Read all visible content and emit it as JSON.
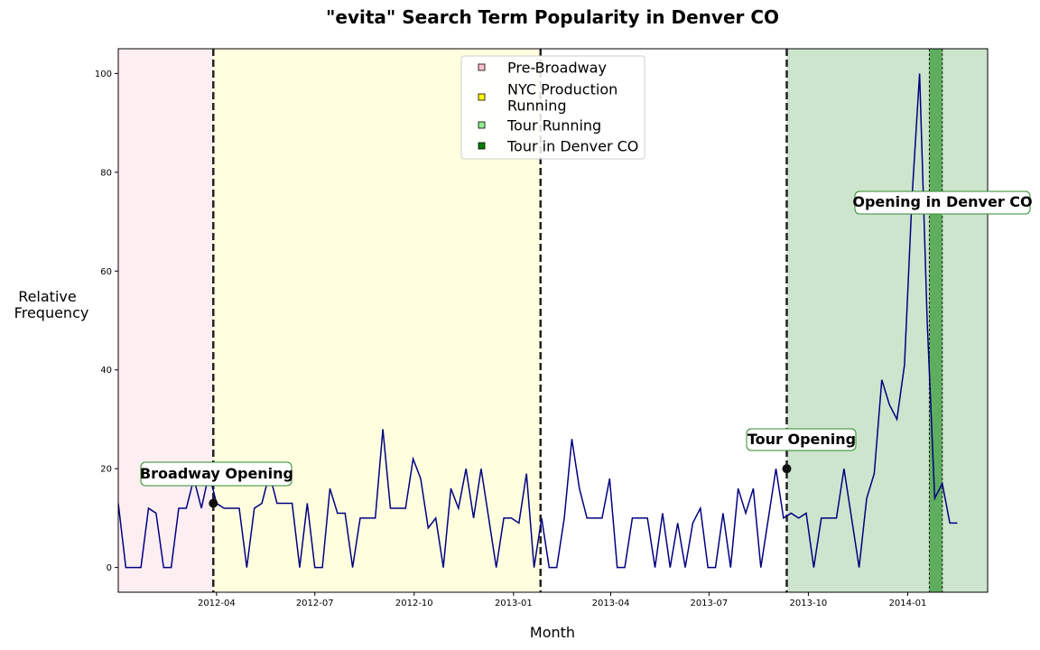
{
  "chart_data": {
    "type": "line",
    "title": "\"evita\" Search Term Popularity in Denver CO",
    "xlabel": "Month",
    "ylabel_line1": "Relative",
    "ylabel_line2": "Frequency",
    "xlim": [
      "2012-01-01",
      "2014-03-16"
    ],
    "ylim": [
      -5,
      105
    ],
    "x_ticks": [
      "2012-04-01",
      "2012-07-01",
      "2012-10-01",
      "2013-01-01",
      "2013-04-01",
      "2013-07-01",
      "2013-10-01",
      "2014-01-01"
    ],
    "x_tick_labels": [
      "2012-04",
      "2012-07",
      "2012-10",
      "2013-01",
      "2013-04",
      "2013-07",
      "2013-10",
      "2014-01"
    ],
    "y_ticks": [
      0,
      20,
      40,
      60,
      80,
      100
    ],
    "y_tick_labels": [
      "0",
      "20",
      "40",
      "60",
      "80",
      "100"
    ],
    "grid": false,
    "legend_placement": "top-center",
    "start_date": "2012-01-01",
    "interval_days": 7,
    "series": [
      {
        "color": "#000080",
        "values": [
          13,
          0,
          0,
          0,
          12,
          11,
          0,
          0,
          12,
          12,
          18,
          12,
          19,
          13,
          12,
          12,
          12,
          0,
          12,
          13,
          19,
          13,
          13,
          13,
          0,
          13,
          0,
          0,
          16,
          11,
          11,
          0,
          10,
          10,
          10,
          28,
          12,
          12,
          12,
          22,
          18,
          8,
          10,
          0,
          16,
          12,
          20,
          10,
          20,
          10,
          0,
          10,
          10,
          9,
          19,
          0,
          10,
          0,
          0,
          10,
          26,
          16,
          10,
          10,
          10,
          18,
          0,
          0,
          10,
          10,
          10,
          0,
          11,
          0,
          9,
          0,
          9,
          12,
          0,
          0,
          11,
          0,
          16,
          11,
          16,
          0,
          10,
          20,
          10,
          11,
          10,
          11,
          0,
          10,
          10,
          10,
          20,
          10,
          0,
          14,
          19,
          38,
          33,
          30,
          41,
          75,
          100,
          50,
          14,
          17,
          9,
          9
        ]
      }
    ],
    "regions": [
      {
        "label": "Pre-Broadway",
        "start": "2012-01-01",
        "end": "2012-03-29",
        "color": "#fdeef2"
      },
      {
        "label": "NYC Production Running",
        "start": "2012-03-29",
        "end": "2013-01-26",
        "color": "#ffffe0"
      },
      {
        "label": "Tour Running",
        "start": "2013-09-11",
        "end": "2014-03-16",
        "color": "#cde5cd"
      },
      {
        "label": "Tour in Denver CO",
        "start": "2014-01-21",
        "end": "2014-02-02",
        "color": "#5fae5f"
      }
    ],
    "legend_entries": [
      {
        "label_lines": [
          "Pre-Broadway"
        ],
        "color": "#ffc0cb"
      },
      {
        "label_lines": [
          "NYC Production",
          "Running"
        ],
        "color": "#ffff00"
      },
      {
        "label_lines": [
          "Tour Running"
        ],
        "color": "#90ee90"
      },
      {
        "label_lines": [
          "Tour in Denver CO"
        ],
        "color": "#008000"
      }
    ],
    "vlines": [
      "2012-03-29",
      "2013-01-26",
      "2013-09-11"
    ],
    "annotations": [
      {
        "text": "Broadway Opening",
        "date": "2012-03-29",
        "y": 13
      },
      {
        "text": "Tour Opening",
        "date": "2013-09-11",
        "y": 20
      },
      {
        "text": "Opening in Denver CO",
        "date": "2014-01-21",
        "y": 78
      }
    ]
  }
}
